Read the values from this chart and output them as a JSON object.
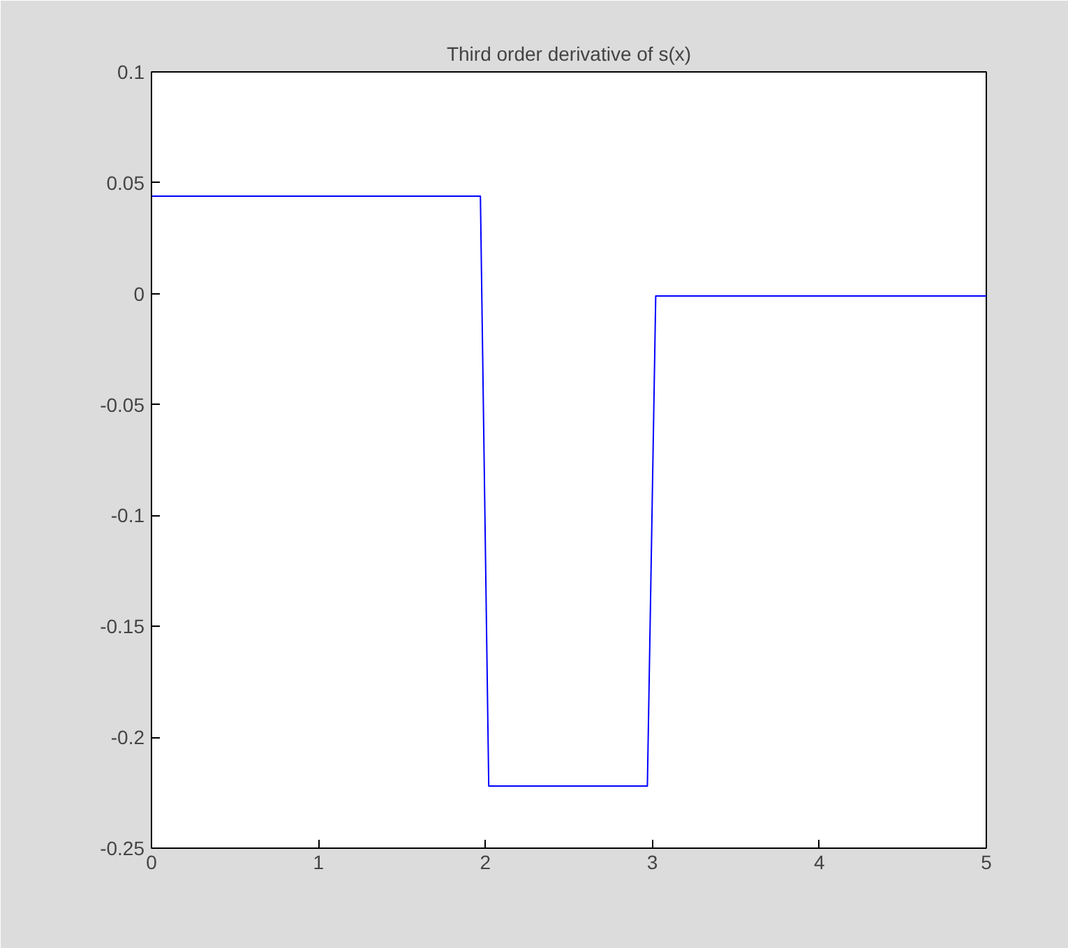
{
  "chart_data": {
    "type": "line",
    "title": "Third order derivative of s(x)",
    "x": [
      0,
      1.97,
      2.02,
      2.97,
      3.02,
      5
    ],
    "series": [
      {
        "color": "#0000ff",
        "values": [
          0.044,
          0.044,
          -0.222,
          -0.222,
          -0.001,
          -0.001
        ]
      }
    ],
    "xlim": [
      0,
      5
    ],
    "xticks": [
      0,
      1,
      2,
      3,
      4,
      5
    ],
    "ylim": [
      -0.25,
      0.1
    ],
    "yticks": [
      -0.25,
      -0.2,
      -0.15,
      -0.1,
      -0.05,
      0,
      0.05,
      0.1
    ],
    "grid": false,
    "line_style": "solid"
  }
}
